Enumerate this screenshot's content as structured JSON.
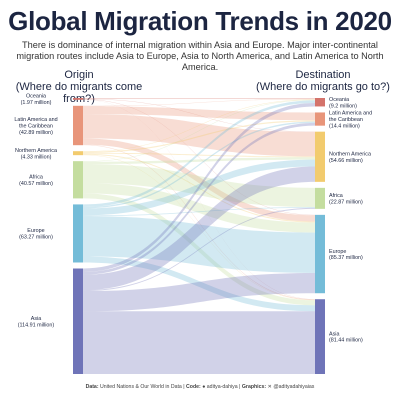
{
  "title": "Global Migration Trends in 2020",
  "subtitle": "There is dominance of internal migration within Asia and Europe. Major inter-continental migration routes include Asia to Europe, Asia to North America, and Latin America to North America.",
  "origin_heading": {
    "line1": "Origin",
    "line2": "(Where do migrants come from?)"
  },
  "destination_heading": {
    "line1": "Destination",
    "line2": "(Where do migrants go to?)"
  },
  "footer": {
    "data_label": "Data:",
    "data_text": "United Nations & Our World in Data",
    "code_label": "Code:",
    "code_text": "aditya-dahiya",
    "graphics_label": "Graphics:",
    "graphics_text": "@adityadahiyaias"
  },
  "chart_data": {
    "type": "sankey",
    "origins": [
      {
        "name": "Oceania",
        "value_label": "(1.97 million)",
        "value": 1.97,
        "color": "#d4736b"
      },
      {
        "name": "Latin America and the Caribbean",
        "value_label": "(42.89 million)",
        "value": 42.89,
        "color": "#e8957a"
      },
      {
        "name": "Northern America",
        "value_label": "(4.33 million)",
        "value": 4.33,
        "color": "#f2cb6e"
      },
      {
        "name": "Africa",
        "value_label": "(40.57 million)",
        "value": 40.57,
        "color": "#c4dd9f"
      },
      {
        "name": "Europe",
        "value_label": "(63.27 million)",
        "value": 63.27,
        "color": "#74bcd8"
      },
      {
        "name": "Asia",
        "value_label": "(114.91 million)",
        "value": 114.91,
        "color": "#6f74b8"
      }
    ],
    "destinations": [
      {
        "name": "Oceania",
        "value_label": "(9.2 million)",
        "value": 9.2,
        "color": "#d4736b"
      },
      {
        "name": "Latin America and the Caribbean",
        "value_label": "(14.4 million)",
        "value": 14.4,
        "color": "#e8957a"
      },
      {
        "name": "Northern America",
        "value_label": "(54.66 million)",
        "value": 54.66,
        "color": "#f2cb6e"
      },
      {
        "name": "Africa",
        "value_label": "(22.87 million)",
        "value": 22.87,
        "color": "#c4dd9f"
      },
      {
        "name": "Europe",
        "value_label": "(85.37 million)",
        "value": 85.37,
        "color": "#74bcd8"
      },
      {
        "name": "Asia",
        "value_label": "(81.44 million)",
        "value": 81.44,
        "color": "#6f74b8"
      }
    ],
    "flows": [
      {
        "from": 0,
        "to": 0,
        "value": 1.0
      },
      {
        "from": 0,
        "to": 2,
        "value": 0.4
      },
      {
        "from": 0,
        "to": 4,
        "value": 0.4
      },
      {
        "from": 0,
        "to": 5,
        "value": 0.17
      },
      {
        "from": 1,
        "to": 0,
        "value": 0.5
      },
      {
        "from": 1,
        "to": 1,
        "value": 8.5
      },
      {
        "from": 1,
        "to": 2,
        "value": 26.5
      },
      {
        "from": 1,
        "to": 4,
        "value": 6.8
      },
      {
        "from": 1,
        "to": 5,
        "value": 0.59
      },
      {
        "from": 2,
        "to": 0,
        "value": 0.5
      },
      {
        "from": 2,
        "to": 1,
        "value": 1.3
      },
      {
        "from": 2,
        "to": 2,
        "value": 1.0
      },
      {
        "from": 2,
        "to": 4,
        "value": 1.1
      },
      {
        "from": 2,
        "to": 5,
        "value": 0.43
      },
      {
        "from": 3,
        "to": 0,
        "value": 0.6
      },
      {
        "from": 3,
        "to": 2,
        "value": 2.5
      },
      {
        "from": 3,
        "to": 3,
        "value": 21.0
      },
      {
        "from": 3,
        "to": 4,
        "value": 11.0
      },
      {
        "from": 3,
        "to": 5,
        "value": 5.47
      },
      {
        "from": 4,
        "to": 0,
        "value": 2.8
      },
      {
        "from": 4,
        "to": 1,
        "value": 1.6
      },
      {
        "from": 4,
        "to": 2,
        "value": 7.5
      },
      {
        "from": 4,
        "to": 3,
        "value": 0.87
      },
      {
        "from": 4,
        "to": 4,
        "value": 44.0
      },
      {
        "from": 4,
        "to": 5,
        "value": 6.5
      },
      {
        "from": 5,
        "to": 0,
        "value": 3.8
      },
      {
        "from": 5,
        "to": 1,
        "value": 3.0
      },
      {
        "from": 5,
        "to": 2,
        "value": 16.76
      },
      {
        "from": 5,
        "to": 3,
        "value": 1.0
      },
      {
        "from": 5,
        "to": 4,
        "value": 22.07
      },
      {
        "from": 5,
        "to": 5,
        "value": 68.28
      }
    ]
  }
}
